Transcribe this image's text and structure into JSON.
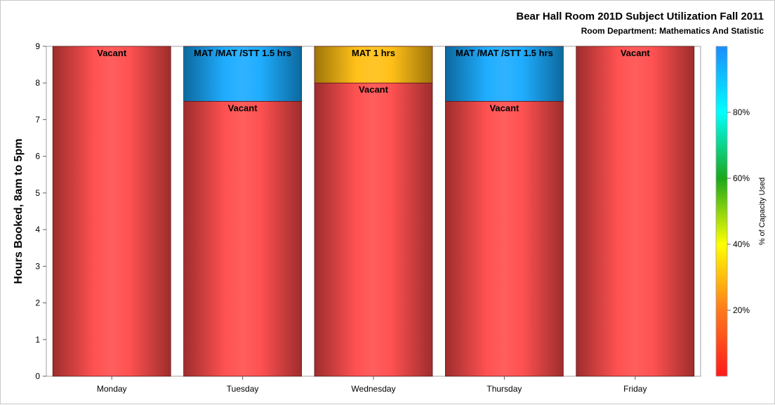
{
  "chart_data": {
    "type": "bar",
    "stacked": true,
    "title": "Bear Hall Room 201D Subject Utilization Fall 2011",
    "subtitle": "Room Department:  Mathematics And Statistic",
    "ylabel": "Hours Booked, 8am to 5pm",
    "xlabel": "",
    "ylim": [
      0,
      9
    ],
    "yticks": [
      "0",
      "1",
      "2",
      "3",
      "4",
      "5",
      "6",
      "7",
      "8",
      "9"
    ],
    "categories": [
      "Monday",
      "Tuesday",
      "Wednesday",
      "Thursday",
      "Friday"
    ],
    "bars": [
      {
        "category": "Monday",
        "segments": [
          {
            "label": "Vacant",
            "hours": 9,
            "capacity_pct": 0
          }
        ]
      },
      {
        "category": "Tuesday",
        "segments": [
          {
            "label": "Vacant",
            "hours": 7.5,
            "capacity_pct": 0
          },
          {
            "label": "MAT /MAT /STT 1.5 hrs",
            "hours": 1.5,
            "capacity_pct": 95
          }
        ]
      },
      {
        "category": "Wednesday",
        "segments": [
          {
            "label": "Vacant",
            "hours": 8,
            "capacity_pct": 0
          },
          {
            "label": "MAT 1 hrs",
            "hours": 1,
            "capacity_pct": 30
          }
        ]
      },
      {
        "category": "Thursday",
        "segments": [
          {
            "label": "Vacant",
            "hours": 7.5,
            "capacity_pct": 0
          },
          {
            "label": "MAT /MAT /STT 1.5 hrs",
            "hours": 1.5,
            "capacity_pct": 95
          }
        ]
      },
      {
        "category": "Friday",
        "segments": [
          {
            "label": "Vacant",
            "hours": 9,
            "capacity_pct": 0
          }
        ]
      }
    ],
    "colorbar": {
      "label": "% of Capacity Used",
      "ticks": [
        "20%",
        "40%",
        "60%",
        "80%"
      ],
      "tick_values": [
        20,
        40,
        60,
        80
      ],
      "range": [
        0,
        100
      ],
      "colors": [
        "#ff1a1a",
        "#ff7a1a",
        "#ffff00",
        "#1aa81a",
        "#00ffff",
        "#1a8cff"
      ]
    },
    "grid": false,
    "legend_placement": "right"
  }
}
